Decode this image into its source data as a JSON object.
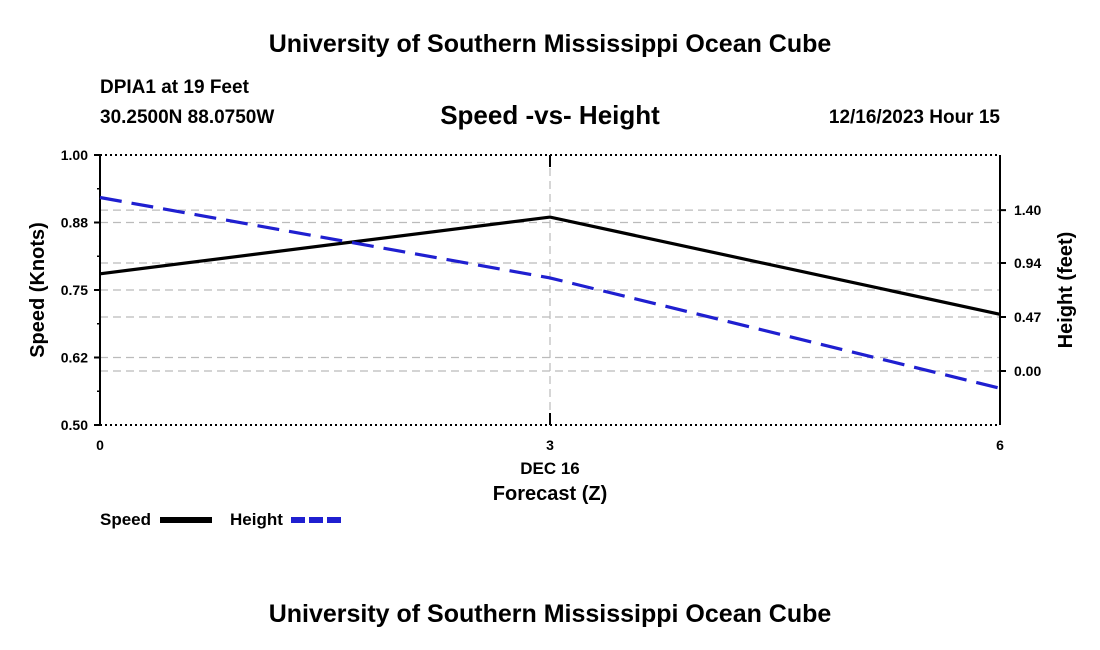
{
  "header": {
    "title_top": "University of Southern Mississippi Ocean Cube",
    "station": "DPIA1 at 19 Feet",
    "coords": "30.2500N  88.0750W",
    "chart_title": "Speed -vs- Height",
    "datetime": "12/16/2023 Hour 15",
    "title_bottom": "University of Southern Mississippi Ocean Cube"
  },
  "legend": {
    "speed_label": "Speed",
    "height_label": "Height"
  },
  "colors": {
    "speed": "#000000",
    "height": "#1f1fd0",
    "grid": "#bbbbbb"
  },
  "chart_data": {
    "type": "line",
    "title": "Speed -vs- Height",
    "xlabel": "Forecast (Z)",
    "x_date_label": "DEC 16",
    "ylabel_left": "Speed (Knots)",
    "ylabel_right": "Height (feet)",
    "x": [
      0,
      3,
      6
    ],
    "x_ticks": [
      "0",
      "3",
      "6"
    ],
    "xlim": [
      0,
      6
    ],
    "ylim_left": [
      0.5,
      1.0
    ],
    "yticks_left": [
      "0.50",
      "0.62",
      "0.75",
      "0.88",
      "1.00"
    ],
    "yticks_left_values": [
      0.5,
      0.625,
      0.75,
      0.875,
      1.0
    ],
    "ylim_right": [
      -0.47,
      1.88
    ],
    "yticks_right": [
      "0.00",
      "0.47",
      "0.94",
      "1.40"
    ],
    "yticks_right_values": [
      0.0,
      0.47,
      0.94,
      1.4
    ],
    "grid": true,
    "series": [
      {
        "name": "Speed",
        "axis": "left",
        "style": "solid",
        "values": [
          0.78,
          0.885,
          0.705
        ]
      },
      {
        "name": "Height",
        "axis": "right",
        "style": "dashed",
        "values": [
          1.51,
          0.81,
          -0.15
        ]
      }
    ]
  }
}
